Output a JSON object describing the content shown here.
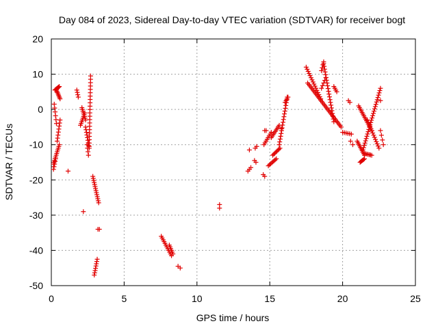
{
  "chart_data": {
    "type": "scatter",
    "title": "Day 084 of 2023, Sidereal Day-to-day VTEC variation (SDTVAR) for receiver bogt",
    "xlabel": "GPS time / hours",
    "ylabel": "SDTVAR / TECUs",
    "xlim": [
      0,
      25
    ],
    "ylim": [
      -50,
      20
    ],
    "xticks": [
      0,
      5,
      10,
      15,
      20,
      25
    ],
    "yticks": [
      -50,
      -40,
      -30,
      -20,
      -10,
      0,
      10,
      20
    ],
    "grid": true,
    "marker": "+",
    "color": "#e00000",
    "segments": [
      {
        "x": [
          0.15,
          0.55
        ],
        "y": [
          -15.5,
          -10.0
        ],
        "n": 12
      },
      {
        "x": [
          0.2,
          0.35
        ],
        "y": [
          1.5,
          -4.0
        ],
        "n": 6
      },
      {
        "x": [
          0.25,
          0.55
        ],
        "y": [
          5.5,
          6.5
        ],
        "n": 8
      },
      {
        "x": [
          0.35,
          0.6
        ],
        "y": [
          5.5,
          3.0
        ],
        "n": 8
      },
      {
        "x": [
          0.4,
          0.6
        ],
        "y": [
          -9.0,
          -3.0
        ],
        "n": 8
      },
      {
        "x": [
          0.15,
          0.3
        ],
        "y": [
          -17.0,
          -14.0
        ],
        "n": 5
      },
      {
        "x": [
          1.15,
          1.15
        ],
        "y": [
          -17.5,
          -17.5
        ],
        "n": 1
      },
      {
        "x": [
          1.75,
          1.85
        ],
        "y": [
          5.5,
          3.5
        ],
        "n": 4
      },
      {
        "x": [
          2.0,
          2.3
        ],
        "y": [
          -4.5,
          -1.0
        ],
        "n": 8
      },
      {
        "x": [
          2.1,
          2.35
        ],
        "y": [
          0.5,
          -3.0
        ],
        "n": 8
      },
      {
        "x": [
          2.2,
          2.2
        ],
        "y": [
          -29.0,
          -29.0
        ],
        "n": 1
      },
      {
        "x": [
          2.35,
          2.6
        ],
        "y": [
          -5.0,
          -11.0
        ],
        "n": 9
      },
      {
        "x": [
          2.45,
          2.55
        ],
        "y": [
          -10.0,
          -13.0
        ],
        "n": 4
      },
      {
        "x": [
          2.6,
          2.7
        ],
        "y": [
          -10.5,
          9.5
        ],
        "n": 22
      },
      {
        "x": [
          2.85,
          3.25
        ],
        "y": [
          -19.0,
          -26.5
        ],
        "n": 14
      },
      {
        "x": [
          2.95,
          3.15
        ],
        "y": [
          -47.0,
          -42.5
        ],
        "n": 8
      },
      {
        "x": [
          3.2,
          3.3
        ],
        "y": [
          -34.0,
          -34.0
        ],
        "n": 2
      },
      {
        "x": [
          7.55,
          8.25
        ],
        "y": [
          -36.0,
          -41.5
        ],
        "n": 12
      },
      {
        "x": [
          8.1,
          8.35
        ],
        "y": [
          -38.5,
          -41.0
        ],
        "n": 6
      },
      {
        "x": [
          8.7,
          8.85
        ],
        "y": [
          -44.5,
          -45.0
        ],
        "n": 2
      },
      {
        "x": [
          11.55,
          11.55
        ],
        "y": [
          -27.0,
          -28.0
        ],
        "n": 2
      },
      {
        "x": [
          13.5,
          13.7
        ],
        "y": [
          -17.5,
          -16.5
        ],
        "n": 3
      },
      {
        "x": [
          13.6,
          13.6
        ],
        "y": [
          -11.5,
          -11.5
        ],
        "n": 1
      },
      {
        "x": [
          13.95,
          14.05
        ],
        "y": [
          -14.5,
          -15.0
        ],
        "n": 2
      },
      {
        "x": [
          14.0,
          14.1
        ],
        "y": [
          -11.0,
          -10.5
        ],
        "n": 2
      },
      {
        "x": [
          14.55,
          14.65
        ],
        "y": [
          -18.5,
          -19.0
        ],
        "n": 2
      },
      {
        "x": [
          14.6,
          15.1
        ],
        "y": [
          -10.0,
          -6.5
        ],
        "n": 8
      },
      {
        "x": [
          14.65,
          14.75
        ],
        "y": [
          -6.0,
          -6.0
        ],
        "n": 2
      },
      {
        "x": [
          14.9,
          15.45
        ],
        "y": [
          -16.0,
          -14.0
        ],
        "n": 8
      },
      {
        "x": [
          15.1,
          15.65
        ],
        "y": [
          -8.0,
          -4.5
        ],
        "n": 9
      },
      {
        "x": [
          15.2,
          15.7
        ],
        "y": [
          -13.0,
          -11.0
        ],
        "n": 8
      },
      {
        "x": [
          15.65,
          16.2
        ],
        "y": [
          -10.0,
          3.5
        ],
        "n": 18
      },
      {
        "x": [
          15.8,
          15.8
        ],
        "y": [
          -5.5,
          -5.5
        ],
        "n": 1
      },
      {
        "x": [
          16.05,
          16.25
        ],
        "y": [
          2.0,
          3.5
        ],
        "n": 4
      },
      {
        "x": [
          17.5,
          18.5
        ],
        "y": [
          12.0,
          3.0
        ],
        "n": 16
      },
      {
        "x": [
          17.6,
          19.9
        ],
        "y": [
          7.5,
          -5.0
        ],
        "n": 32
      },
      {
        "x": [
          18.55,
          18.85
        ],
        "y": [
          6.0,
          9.0
        ],
        "n": 5
      },
      {
        "x": [
          18.55,
          18.7
        ],
        "y": [
          11.0,
          13.5
        ],
        "n": 4
      },
      {
        "x": [
          18.7,
          19.4
        ],
        "y": [
          13.0,
          -3.5
        ],
        "n": 22
      },
      {
        "x": [
          19.4,
          19.6
        ],
        "y": [
          6.5,
          5.0
        ],
        "n": 4
      },
      {
        "x": [
          20.0,
          20.6
        ],
        "y": [
          -6.5,
          -7.0
        ],
        "n": 6
      },
      {
        "x": [
          20.4,
          20.5
        ],
        "y": [
          2.5,
          2.0
        ],
        "n": 2
      },
      {
        "x": [
          20.55,
          20.7
        ],
        "y": [
          -9.0,
          -10.0
        ],
        "n": 2
      },
      {
        "x": [
          21.0,
          21.5
        ],
        "y": [
          -9.0,
          -13.0
        ],
        "n": 10
      },
      {
        "x": [
          21.1,
          22.0
        ],
        "y": [
          1.0,
          -6.0
        ],
        "n": 16
      },
      {
        "x": [
          21.2,
          21.5
        ],
        "y": [
          -15.0,
          -14.0
        ],
        "n": 6
      },
      {
        "x": [
          21.4,
          22.6
        ],
        "y": [
          -11.5,
          6.0
        ],
        "n": 28
      },
      {
        "x": [
          21.5,
          22.0
        ],
        "y": [
          -12.5,
          -13.0
        ],
        "n": 7
      },
      {
        "x": [
          21.7,
          22.5
        ],
        "y": [
          -3.0,
          -11.0
        ],
        "n": 14
      },
      {
        "x": [
          22.6,
          22.7
        ],
        "y": [
          2.5,
          2.5
        ],
        "n": 1
      },
      {
        "x": [
          22.6,
          22.8
        ],
        "y": [
          -6.0,
          -10.0
        ],
        "n": 4
      }
    ]
  }
}
